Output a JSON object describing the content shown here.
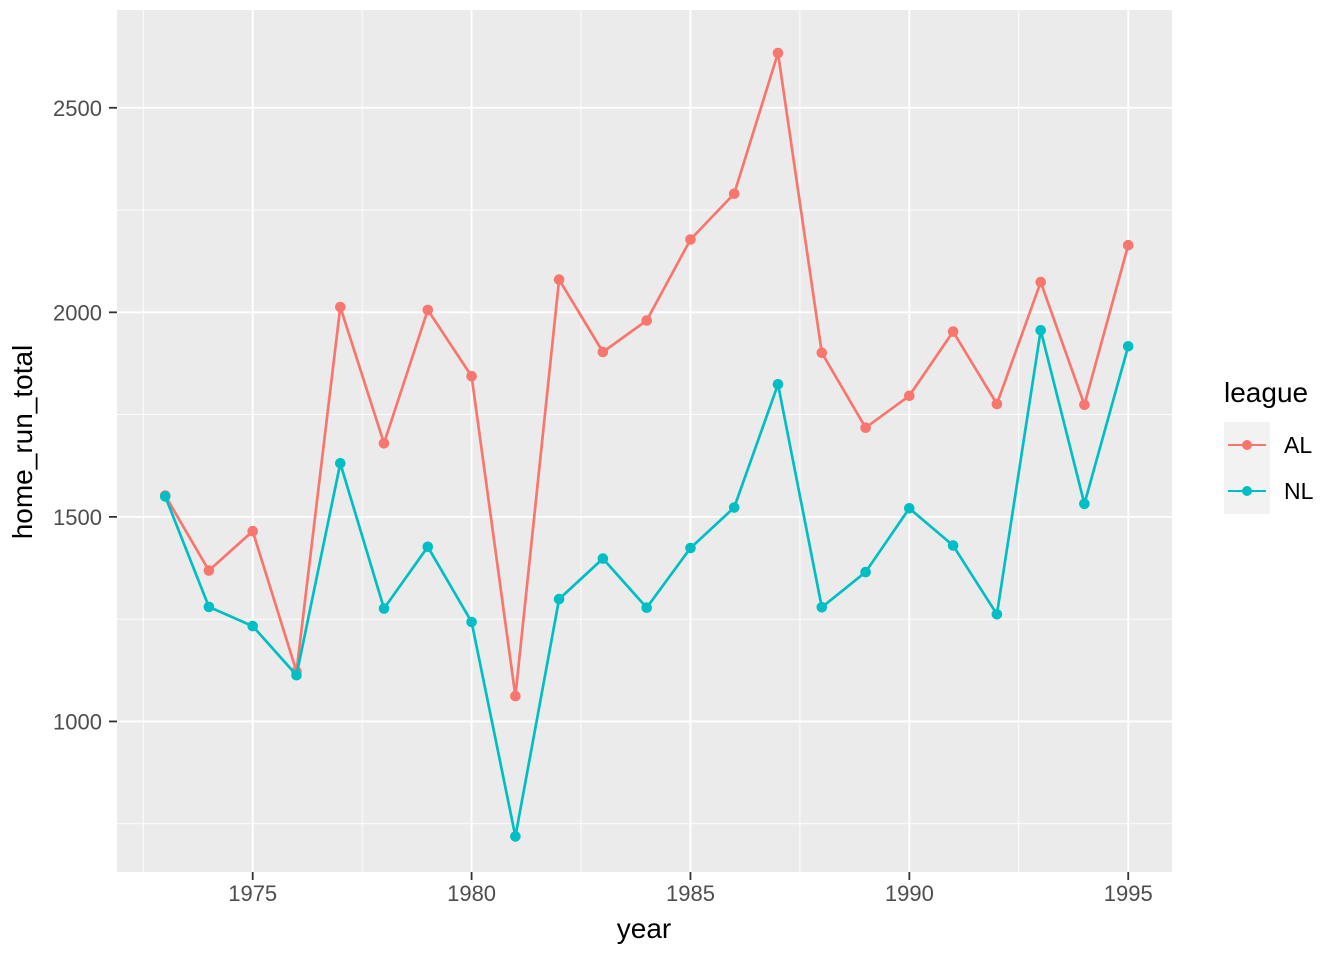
{
  "chart_data": {
    "type": "line",
    "title": "",
    "xlabel": "year",
    "ylabel": "home_run_total",
    "legend_title": "league",
    "legend_position": "right",
    "grid": true,
    "x": [
      1973,
      1974,
      1975,
      1976,
      1977,
      1978,
      1979,
      1980,
      1981,
      1982,
      1983,
      1984,
      1985,
      1986,
      1987,
      1988,
      1989,
      1990,
      1991,
      1992,
      1993,
      1994,
      1995
    ],
    "series": [
      {
        "name": "AL",
        "color": "#F8766D",
        "values": [
          1552,
          1369,
          1465,
          1122,
          2013,
          1680,
          2006,
          1844,
          1062,
          2080,
          1903,
          1980,
          2178,
          2290,
          2634,
          1901,
          1718,
          1796,
          1953,
          1776,
          2074,
          1774,
          2164
        ]
      },
      {
        "name": "NL",
        "color": "#00BFC4",
        "values": [
          1550,
          1280,
          1233,
          1113,
          1631,
          1276,
          1427,
          1243,
          719,
          1299,
          1398,
          1278,
          1424,
          1523,
          1824,
          1279,
          1365,
          1521,
          1430,
          1262,
          1956,
          1532,
          1917
        ]
      }
    ],
    "x_ticks": [
      1975,
      1980,
      1985,
      1990,
      1995
    ],
    "y_ticks": [
      1000,
      1500,
      2000,
      2500
    ],
    "xlim": [
      1971.9,
      1996.0
    ],
    "ylim": [
      632,
      2739
    ],
    "panel_background": "#EBEBEB",
    "grid_color": "#FFFFFF",
    "tick_color": "#333333",
    "tick_label_color": "#4D4D4D",
    "axis_title_color": "#000000",
    "legend_key_fill": "#F2F2F2"
  }
}
